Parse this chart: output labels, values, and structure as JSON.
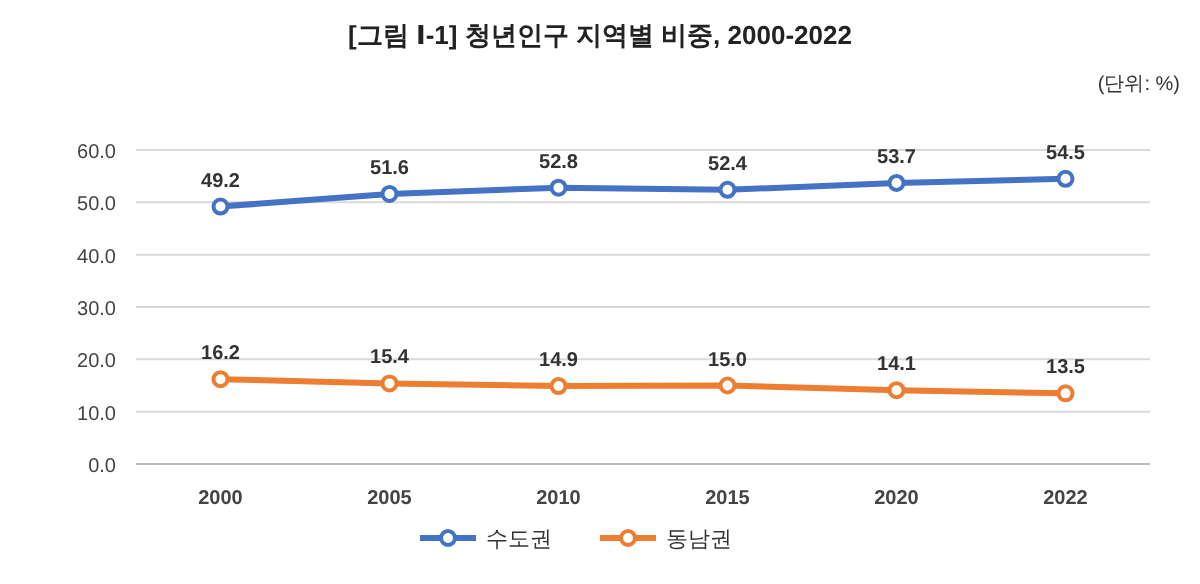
{
  "chart_data": {
    "type": "line",
    "title": "[그림 Ⅰ-1] 청년인구 지역별 비중, 2000-2022",
    "annotations": [
      "(단위: %)"
    ],
    "categories": [
      "2000",
      "2005",
      "2010",
      "2015",
      "2020",
      "2022"
    ],
    "series": [
      {
        "name": "수도권",
        "color": "#4472c4",
        "values": [
          49.2,
          51.6,
          52.8,
          52.4,
          53.7,
          54.5
        ],
        "value_labels": [
          "49.2",
          "51.6",
          "52.8",
          "52.4",
          "53.7",
          "54.5"
        ]
      },
      {
        "name": "동남권",
        "color": "#ed7d31",
        "values": [
          16.2,
          15.4,
          14.9,
          15.0,
          14.1,
          13.5
        ],
        "value_labels": [
          "16.2",
          "15.4",
          "14.9",
          "15.0",
          "14.1",
          "13.5"
        ]
      }
    ],
    "ylim": [
      0,
      60
    ],
    "yticks": [
      {
        "value": 0,
        "label": "0.0"
      },
      {
        "value": 10,
        "label": "10.0"
      },
      {
        "value": 20,
        "label": "20.0"
      },
      {
        "value": 30,
        "label": "30.0"
      },
      {
        "value": 40,
        "label": "40.0"
      },
      {
        "value": 50,
        "label": "50.0"
      },
      {
        "value": 60,
        "label": "60.0"
      }
    ],
    "grid": "y",
    "legend": "bottom",
    "marker": "circle",
    "line_style": "solid"
  }
}
